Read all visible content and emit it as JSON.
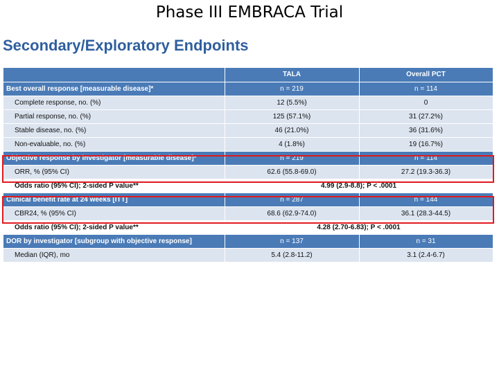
{
  "slide_title": "Phase III EMBRACA Trial",
  "subtitle": "Secondary/Exploratory Endpoints",
  "columns": [
    "",
    "TALA",
    "Overall PCT"
  ],
  "best_overall": {
    "label": "Best overall response [measurable disease]*",
    "tala": "n = 219",
    "pct": "n = 114",
    "rows": [
      {
        "label": "Complete response, no. (%)",
        "tala": "12 (5.5%)",
        "pct": "0"
      },
      {
        "label": "Partial response, no. (%)",
        "tala": "125 (57.1%)",
        "pct": "31 (27.2%)"
      },
      {
        "label": "Stable disease, no. (%)",
        "tala": "46 (21.0%)",
        "pct": "36 (31.6%)"
      },
      {
        "label": "Non-evaluable, no. (%)",
        "tala": "4 (1.8%)",
        "pct": "19 (16.7%)"
      }
    ]
  },
  "objective": {
    "label": "Objective response by investigator [measurable disease]*",
    "tala": "n = 219",
    "pct": "n = 114",
    "row": {
      "label": "ORR, % (95% CI)",
      "tala": "62.6 (55.8-69.0)",
      "pct": "27.2 (19.3-36.3)"
    },
    "odds": {
      "label": "Odds ratio (95% CI); 2-sided P value**",
      "value": "4.99 (2.9-8.8); P < .0001"
    }
  },
  "clinical": {
    "label": "Clinical benefit rate at 24 weeks [ITT]",
    "tala": "n = 287",
    "pct": "n = 144",
    "row": {
      "label": "CBR24, % (95% CI)",
      "tala": "68.6 (62.9-74.0)",
      "pct": "36.1 (28.3-44.5)"
    },
    "odds": {
      "label": "Odds ratio (95% CI); 2-sided P value**",
      "value": "4.28 (2.70-6.83); P < .0001"
    }
  },
  "dor": {
    "label": "DOR by investigator [subgroup with objective response]",
    "tala": "n = 137",
    "pct": "n = 31",
    "row": {
      "label": "Median (IQR), mo",
      "tala": "5.4 (2.8-11.2)",
      "pct": "3.1 (2.4-6.7)"
    }
  },
  "colors": {
    "header_blue": "#4a7bb7",
    "row_light": "#dce4ef",
    "highlight_red": "#e0191e",
    "subtitle_blue": "#2f5f9e"
  }
}
